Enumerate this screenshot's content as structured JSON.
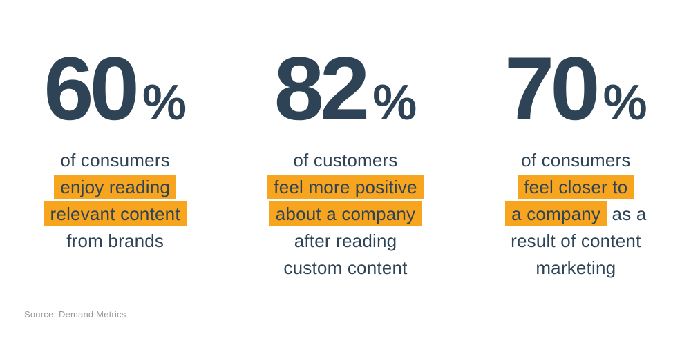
{
  "colors": {
    "navy": "#2e4456",
    "highlight_orange": "#f7a41f",
    "source_gray": "#999999",
    "background": "#ffffff"
  },
  "chart_data": {
    "type": "table",
    "title": "",
    "categories": [
      "of consumers enjoy reading relevant content from brands",
      "of customers feel more positive about a company after reading custom content",
      "of consumers feel closer to a company as a result of content marketing"
    ],
    "values": [
      60,
      82,
      70
    ],
    "unit": "%"
  },
  "stats": [
    {
      "value": "60",
      "percent": "%",
      "lines": [
        [
          {
            "text": "of consumers",
            "highlight": false
          }
        ],
        [
          {
            "text": "enjoy reading",
            "highlight": true
          }
        ],
        [
          {
            "text": "relevant content",
            "highlight": true
          }
        ],
        [
          {
            "text": "from brands",
            "highlight": false
          }
        ]
      ]
    },
    {
      "value": "82",
      "percent": "%",
      "lines": [
        [
          {
            "text": "of customers",
            "highlight": false
          }
        ],
        [
          {
            "text": "feel more positive",
            "highlight": true
          }
        ],
        [
          {
            "text": "about a company",
            "highlight": true
          }
        ],
        [
          {
            "text": "after reading",
            "highlight": false
          }
        ],
        [
          {
            "text": "custom content",
            "highlight": false
          }
        ]
      ]
    },
    {
      "value": "70",
      "percent": "%",
      "lines": [
        [
          {
            "text": "of consumers",
            "highlight": false
          }
        ],
        [
          {
            "text": "feel closer to",
            "highlight": true
          }
        ],
        [
          {
            "text": "a company",
            "highlight": true
          },
          {
            "text": "as a",
            "highlight": false
          }
        ],
        [
          {
            "text": "result of content",
            "highlight": false
          }
        ],
        [
          {
            "text": "marketing",
            "highlight": false
          }
        ]
      ]
    }
  ],
  "source": {
    "label": "Source: Demand Metrics"
  }
}
